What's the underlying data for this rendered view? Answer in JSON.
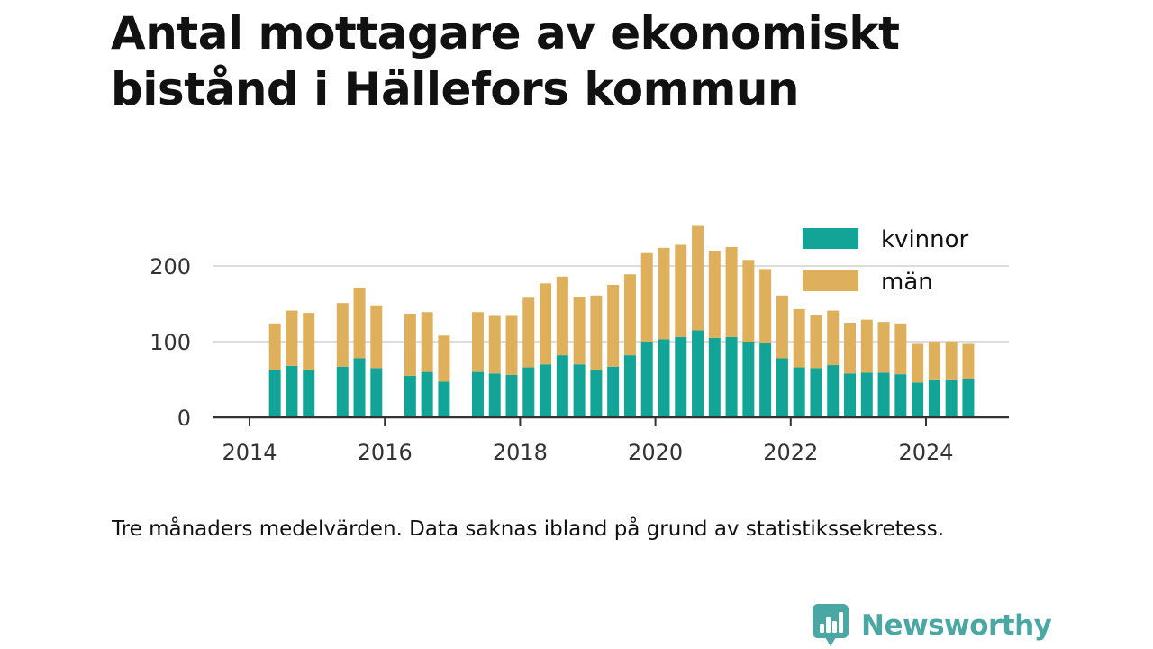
{
  "title": "Antal mottagare av ekonomiskt bistånd i Hällefors kommun",
  "caption": "Tre månaders medelvärden. Data saknas ibland på grund av statistikssekretess.",
  "brand": {
    "name": "Newsworthy"
  },
  "colors": {
    "kvinnor": "#12a597",
    "man": "#dfb05c",
    "grid": "#dddddd",
    "axis": "#333333",
    "brand": "#4aa7a3"
  },
  "chart_data": {
    "type": "bar",
    "stacked": true,
    "title": "Antal mottagare av ekonomiskt bistånd i Hällefors kommun",
    "xlabel": "",
    "ylabel": "",
    "ylim": [
      0,
      260
    ],
    "xlim": [
      2013.6,
      2025.4
    ],
    "yticks": [
      0,
      100,
      200
    ],
    "xticks": [
      2014,
      2016,
      2018,
      2020,
      2022,
      2024
    ],
    "grid": true,
    "legend": {
      "position": "top-right",
      "entries": [
        "kvinnor",
        "män"
      ]
    },
    "x": [
      2014.375,
      2014.625,
      2014.875,
      2015.375,
      2015.625,
      2015.875,
      2016.375,
      2016.625,
      2016.875,
      2017.375,
      2017.625,
      2017.875,
      2018.125,
      2018.375,
      2018.625,
      2018.875,
      2019.125,
      2019.375,
      2019.625,
      2019.875,
      2020.125,
      2020.375,
      2020.625,
      2020.875,
      2021.125,
      2021.375,
      2021.625,
      2021.875,
      2022.125,
      2022.375,
      2022.625,
      2022.875,
      2023.125,
      2023.375,
      2023.625,
      2023.875,
      2024.125,
      2024.375,
      2024.625
    ],
    "series": [
      {
        "name": "kvinnor",
        "values": [
          63,
          68,
          63,
          67,
          78,
          65,
          55,
          60,
          47,
          60,
          58,
          56,
          66,
          70,
          82,
          70,
          63,
          67,
          82,
          100,
          103,
          106,
          115,
          105,
          106,
          100,
          98,
          78,
          66,
          65,
          69,
          58,
          59,
          59,
          57,
          46,
          49,
          49,
          51
        ]
      },
      {
        "name": "män",
        "values": [
          61,
          73,
          75,
          84,
          93,
          83,
          82,
          79,
          61,
          79,
          76,
          78,
          92,
          107,
          104,
          89,
          98,
          108,
          107,
          117,
          121,
          122,
          138,
          115,
          119,
          108,
          98,
          83,
          77,
          70,
          72,
          67,
          70,
          67,
          67,
          51,
          51,
          51,
          46
        ]
      }
    ]
  }
}
